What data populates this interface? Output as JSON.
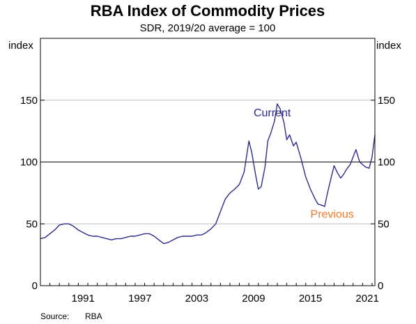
{
  "chart_data": {
    "type": "line",
    "title": "RBA Index of Commodity Prices",
    "subtitle": "SDR, 2019/20 average = 100",
    "ylabel_left": "index",
    "ylabel_right": "index",
    "ylim": [
      0,
      200
    ],
    "y_ticks": [
      0,
      50,
      100,
      150
    ],
    "xlim": [
      1986.0,
      2021.3
    ],
    "x_ticks": [
      {
        "value": 1991,
        "label": "1991"
      },
      {
        "value": 1997,
        "label": "1997"
      },
      {
        "value": 2003,
        "label": "2003"
      },
      {
        "value": 2009,
        "label": "2009"
      },
      {
        "value": 2015,
        "label": "2015"
      },
      {
        "value": 2021,
        "label": "2021"
      }
    ],
    "gridlines": [
      50,
      100,
      150
    ],
    "reference_line": 100,
    "series": [
      {
        "name": "Current",
        "color": "#2e2a8c",
        "x": [
          1986.0,
          1986.5,
          1987.0,
          1987.5,
          1988.0,
          1988.5,
          1989.0,
          1989.5,
          1990.0,
          1990.5,
          1991.0,
          1991.5,
          1992.0,
          1992.5,
          1993.0,
          1993.5,
          1994.0,
          1994.5,
          1995.0,
          1995.5,
          1996.0,
          1996.5,
          1997.0,
          1997.5,
          1998.0,
          1998.5,
          1999.0,
          1999.5,
          2000.0,
          2000.5,
          2001.0,
          2001.5,
          2002.0,
          2002.5,
          2003.0,
          2003.5,
          2004.0,
          2004.5,
          2005.0,
          2005.5,
          2006.0,
          2006.5,
          2007.0,
          2007.5,
          2008.0,
          2008.3,
          2008.7,
          2009.0,
          2009.3,
          2009.7,
          2010.0,
          2010.3,
          2010.7,
          2011.0,
          2011.3,
          2011.7,
          2012.0,
          2012.3,
          2012.7,
          2013.0,
          2013.5,
          2014.0,
          2014.5,
          2015.0,
          2015.3,
          2015.7,
          2016.0,
          2016.3,
          2016.7,
          2017.0,
          2017.3,
          2017.7,
          2018.0,
          2018.3,
          2018.7,
          2019.0,
          2019.3,
          2019.7,
          2020.0,
          2020.3,
          2020.7,
          2021.0,
          2021.3
        ],
        "values": [
          38,
          39,
          42,
          45,
          49,
          50,
          50,
          48,
          45,
          43,
          41,
          40,
          40,
          39,
          38,
          37,
          38,
          38,
          39,
          40,
          40,
          41,
          42,
          42,
          40,
          37,
          34,
          35,
          37,
          39,
          40,
          40,
          40,
          41,
          41,
          43,
          46,
          50,
          60,
          70,
          75,
          78,
          82,
          92,
          117,
          108,
          90,
          78,
          80,
          96,
          117,
          123,
          133,
          147,
          143,
          132,
          118,
          122,
          113,
          116,
          103,
          88,
          78,
          70,
          66,
          65,
          64,
          75,
          88,
          97,
          92,
          87,
          90,
          94,
          98,
          104,
          110,
          100,
          98,
          96,
          95,
          104,
          122
        ]
      }
    ],
    "annotations": [
      {
        "text": "Current",
        "color": "#2e2a8c",
        "x": 2008.5,
        "y": 137
      },
      {
        "text": "Previous",
        "color": "#f07b2a",
        "x": 2014.5,
        "y": 55
      }
    ],
    "source_label": "Source:",
    "source_value": "RBA"
  }
}
